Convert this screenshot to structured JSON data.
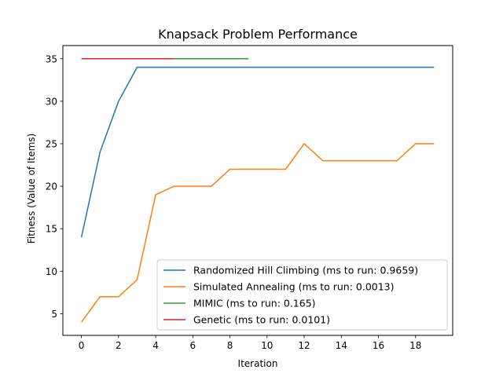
{
  "chart_data": {
    "type": "line",
    "title": "Knapsack Problem Performance",
    "xlabel": "Iteration",
    "ylabel": "Fitness (Value of Items)",
    "xlim": [
      -1.0,
      20.0
    ],
    "ylim": [
      2.45,
      36.55
    ],
    "xticks": [
      0,
      2,
      4,
      6,
      8,
      10,
      12,
      14,
      16,
      18
    ],
    "yticks": [
      5,
      10,
      15,
      20,
      25,
      30,
      35
    ],
    "legend_position": "lower-right",
    "grid": false,
    "series": [
      {
        "name": "Randomized Hill Climbing (ms to run: 0.9659)",
        "color": "#1f77b4",
        "x": [
          0,
          1,
          2,
          3,
          4,
          5,
          6,
          7,
          8,
          9,
          10,
          11,
          12,
          13,
          14,
          15,
          16,
          17,
          18,
          19
        ],
        "y": [
          14,
          24,
          30,
          34,
          34,
          34,
          34,
          34,
          34,
          34,
          34,
          34,
          34,
          34,
          34,
          34,
          34,
          34,
          34,
          34
        ]
      },
      {
        "name": "Simulated Annealing (ms to run: 0.0013)",
        "color": "#ff7f0e",
        "x": [
          0,
          1,
          2,
          3,
          4,
          5,
          6,
          7,
          8,
          9,
          10,
          11,
          12,
          13,
          14,
          15,
          16,
          17,
          18,
          19
        ],
        "y": [
          4,
          7,
          7,
          9,
          19,
          20,
          20,
          20,
          22,
          22,
          22,
          22,
          25,
          23,
          23,
          23,
          23,
          23,
          25,
          25
        ]
      },
      {
        "name": "MIMIC (ms to run: 0.165)",
        "color": "#2ca02c",
        "x": [
          0,
          1,
          2,
          3,
          4,
          5,
          6,
          7,
          8,
          9
        ],
        "y": [
          35,
          35,
          35,
          35,
          35,
          35,
          35,
          35,
          35,
          35
        ]
      },
      {
        "name": "Genetic (ms to run: 0.0101)",
        "color": "#d62728",
        "x": [
          0,
          1,
          2,
          3,
          4,
          5
        ],
        "y": [
          35,
          35,
          35,
          35,
          35,
          35
        ]
      }
    ]
  }
}
